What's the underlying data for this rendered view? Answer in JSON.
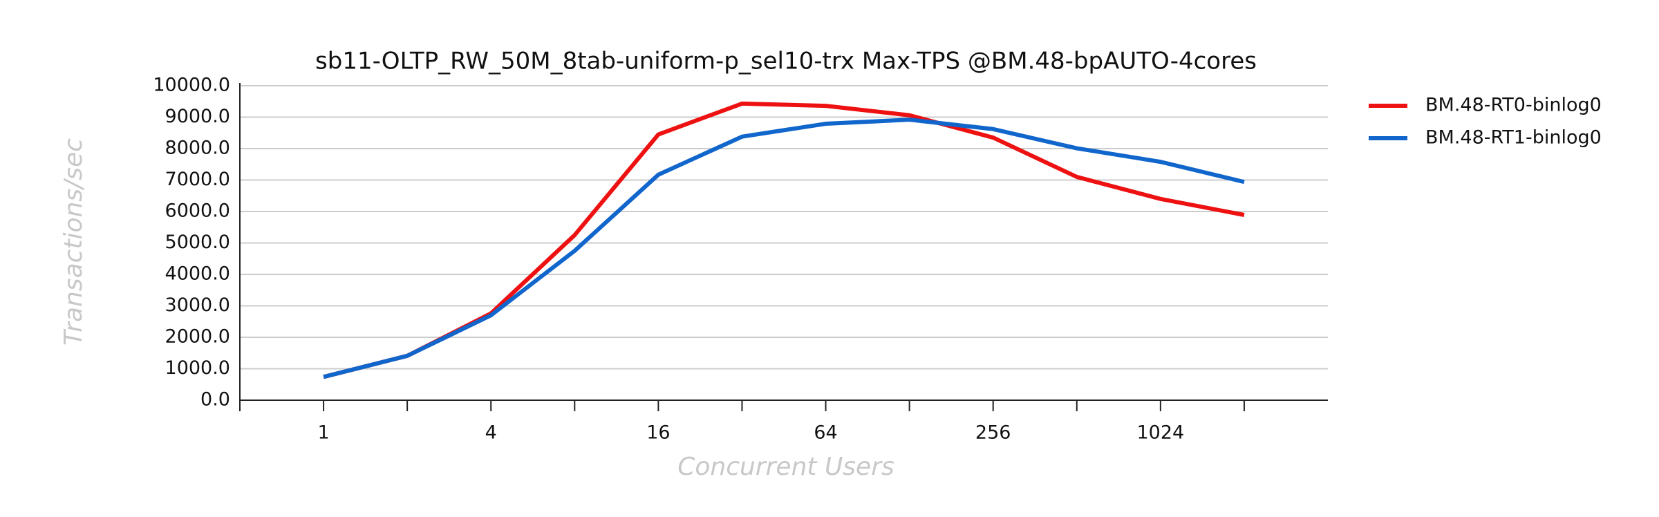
{
  "chart_data": {
    "type": "line",
    "title": "sb11-OLTP_RW_50M_8tab-uniform-p_sel10-trx Max-TPS @BM.48-bpAUTO-4cores",
    "x_label": "Concurrent Users",
    "y_label": "Transactions/sec",
    "categories": [
      "1",
      null,
      "4",
      null,
      "16",
      null,
      "64",
      null,
      "256",
      null,
      "1024",
      null
    ],
    "series": [
      {
        "name": "BM.48-RT0-binlog0",
        "color": "#ee1111",
        "values": [
          740,
          1410,
          2760,
          5250,
          8450,
          9430,
          9360,
          9060,
          8350,
          7100,
          6400,
          5890
        ]
      },
      {
        "name": "BM.48-RT1-binlog0",
        "color": "#1166cc",
        "values": [
          740,
          1410,
          2700,
          4750,
          7170,
          8380,
          8790,
          8920,
          8620,
          8010,
          7580,
          6940
        ]
      }
    ],
    "ylim": [
      0,
      10000
    ],
    "yticks": [
      {
        "value": 0,
        "label": "0.0"
      },
      {
        "value": 1000,
        "label": "1000.0"
      },
      {
        "value": 2000,
        "label": "2000.0"
      },
      {
        "value": 3000,
        "label": "3000.0"
      },
      {
        "value": 4000,
        "label": "4000.0"
      },
      {
        "value": 5000,
        "label": "5000.0"
      },
      {
        "value": 6000,
        "label": "6000.0"
      },
      {
        "value": 7000,
        "label": "7000.0"
      },
      {
        "value": 8000,
        "label": "8000.0"
      },
      {
        "value": 9000,
        "label": "9000.0"
      },
      {
        "value": 10000,
        "label": "10000.0"
      }
    ],
    "grid": true,
    "legend": "right"
  }
}
